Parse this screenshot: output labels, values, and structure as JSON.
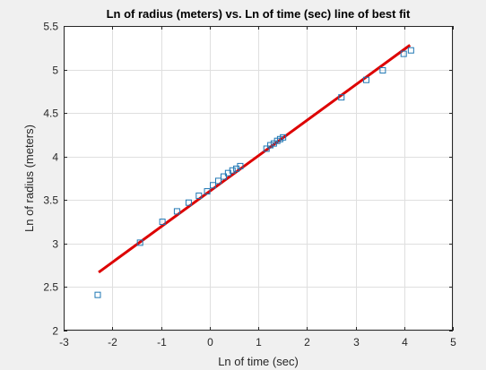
{
  "chart_data": {
    "type": "scatter",
    "title": "Ln of radius (meters) vs. Ln of time (sec) line of best fit",
    "xlabel": "Ln of time (sec)",
    "ylabel": "Ln of radius (meters)",
    "xlim": [
      -3,
      5
    ],
    "ylim": [
      2,
      5.5
    ],
    "xticks": [
      "-3",
      "-2",
      "-1",
      "0",
      "1",
      "2",
      "3",
      "4",
      "5"
    ],
    "yticks": [
      "2",
      "2.5",
      "3",
      "3.5",
      "4",
      "4.5",
      "5",
      "5.5"
    ],
    "grid": true,
    "legend": "none",
    "series": [
      {
        "kind": "scatter",
        "marker": "square",
        "color": "#1f77b4",
        "points": [
          [
            -2.3,
            2.41
          ],
          [
            -1.43,
            3.01
          ],
          [
            -0.97,
            3.25
          ],
          [
            -0.67,
            3.37
          ],
          [
            -0.43,
            3.47
          ],
          [
            -0.22,
            3.55
          ],
          [
            -0.05,
            3.6
          ],
          [
            0.07,
            3.67
          ],
          [
            0.18,
            3.72
          ],
          [
            0.29,
            3.77
          ],
          [
            0.38,
            3.81
          ],
          [
            0.47,
            3.84
          ],
          [
            0.55,
            3.86
          ],
          [
            0.63,
            3.89
          ],
          [
            1.17,
            4.09
          ],
          [
            1.25,
            4.13
          ],
          [
            1.32,
            4.15
          ],
          [
            1.39,
            4.18
          ],
          [
            1.45,
            4.2
          ],
          [
            1.51,
            4.22
          ],
          [
            2.71,
            4.68
          ],
          [
            3.22,
            4.88
          ],
          [
            3.56,
            4.99
          ],
          [
            3.99,
            5.18
          ],
          [
            4.14,
            5.22
          ]
        ]
      },
      {
        "kind": "line",
        "color": "#dd0000",
        "points": [
          [
            -2.28,
            2.67
          ],
          [
            4.12,
            5.28
          ]
        ]
      }
    ]
  }
}
